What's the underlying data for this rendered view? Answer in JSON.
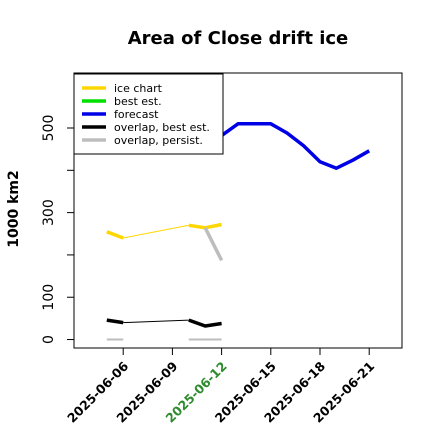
{
  "chart_data": {
    "type": "line",
    "title": "Area of Close drift ice",
    "ylabel": "1000 km2",
    "xlabel": "",
    "x_ticks": [
      "2025-06-06",
      "2025-06-09",
      "2025-06-12",
      "2025-06-15",
      "2025-06-18",
      "2025-06-21"
    ],
    "x_tick_highlight": "2025-06-12",
    "x_tick_colors": {
      "default": "#000000",
      "highlight": "#2e8b2e"
    },
    "y_ticks": [
      0,
      100,
      300,
      500
    ],
    "xlim": [
      "2025-06-03",
      "2025-06-23"
    ],
    "ylim": [
      -20,
      630
    ],
    "grid": false,
    "legend_position": "top-left",
    "series": [
      {
        "name": "ice chart",
        "color": "#ffd700",
        "segments": [
          {
            "width": "thick",
            "points": [
              [
                "2025-06-05",
                255
              ],
              [
                "2025-06-06",
                240
              ]
            ]
          },
          {
            "width": "thin",
            "points": [
              [
                "2025-06-06",
                240
              ],
              [
                "2025-06-10",
                270
              ]
            ]
          },
          {
            "width": "thick",
            "points": [
              [
                "2025-06-10",
                270
              ],
              [
                "2025-06-11",
                264
              ],
              [
                "2025-06-12",
                272
              ]
            ]
          }
        ]
      },
      {
        "name": "best est.",
        "color": "#00e000",
        "segments": []
      },
      {
        "name": "forecast",
        "color": "#0000e6",
        "segments": [
          {
            "width": "thick",
            "points": [
              [
                "2025-06-12",
                482
              ],
              [
                "2025-06-13",
                510
              ],
              [
                "2025-06-14",
                510
              ],
              [
                "2025-06-15",
                510
              ],
              [
                "2025-06-16",
                488
              ],
              [
                "2025-06-17",
                458
              ],
              [
                "2025-06-18",
                420
              ],
              [
                "2025-06-19",
                405
              ],
              [
                "2025-06-20",
                424
              ],
              [
                "2025-06-21",
                446
              ]
            ]
          }
        ]
      },
      {
        "name": "overlap, best est.",
        "color": "#000000",
        "segments": [
          {
            "width": "thick",
            "points": [
              [
                "2025-06-05",
                46
              ],
              [
                "2025-06-06",
                40
              ]
            ]
          },
          {
            "width": "thin",
            "points": [
              [
                "2025-06-06",
                40
              ],
              [
                "2025-06-10",
                46
              ]
            ]
          },
          {
            "width": "thick",
            "points": [
              [
                "2025-06-10",
                46
              ],
              [
                "2025-06-11",
                32
              ],
              [
                "2025-06-12",
                38
              ]
            ]
          }
        ]
      },
      {
        "name": "overlap, persist.",
        "color": "#bdbdbd",
        "segments": [
          {
            "width": "thick",
            "points": [
              [
                "2025-06-11",
                264
              ],
              [
                "2025-06-12",
                187
              ]
            ]
          },
          {
            "width": "medium",
            "points": [
              [
                "2025-06-05",
                0
              ],
              [
                "2025-06-06",
                0
              ]
            ]
          },
          {
            "width": "medium",
            "points": [
              [
                "2025-06-10",
                0
              ],
              [
                "2025-06-12",
                0
              ]
            ]
          }
        ]
      }
    ]
  }
}
